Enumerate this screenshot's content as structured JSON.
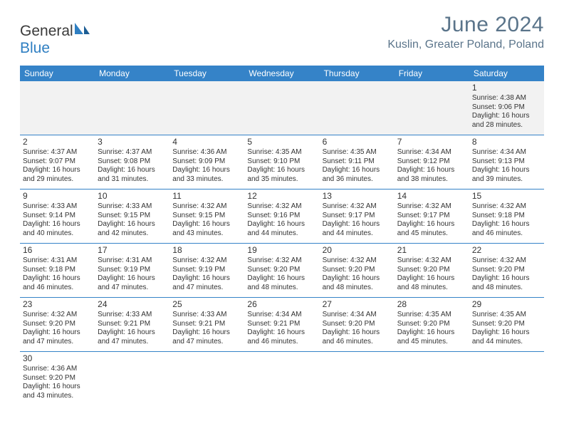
{
  "brand": {
    "part1": "General",
    "part2": "Blue"
  },
  "title": "June 2024",
  "location": "Kuslin, Greater Poland, Poland",
  "colors": {
    "header_bar": "#3583c8",
    "logo_blue": "#2f7fc2",
    "title_gray": "#5a748a",
    "text": "#333333",
    "leading_bg": "#f2f2f2"
  },
  "weekdays": [
    "Sunday",
    "Monday",
    "Tuesday",
    "Wednesday",
    "Thursday",
    "Friday",
    "Saturday"
  ],
  "leading_blanks": 6,
  "days": [
    {
      "n": "1",
      "sunrise": "4:38 AM",
      "sunset": "9:06 PM",
      "day_h": "16",
      "day_m": "28"
    },
    {
      "n": "2",
      "sunrise": "4:37 AM",
      "sunset": "9:07 PM",
      "day_h": "16",
      "day_m": "29"
    },
    {
      "n": "3",
      "sunrise": "4:37 AM",
      "sunset": "9:08 PM",
      "day_h": "16",
      "day_m": "31"
    },
    {
      "n": "4",
      "sunrise": "4:36 AM",
      "sunset": "9:09 PM",
      "day_h": "16",
      "day_m": "33"
    },
    {
      "n": "5",
      "sunrise": "4:35 AM",
      "sunset": "9:10 PM",
      "day_h": "16",
      "day_m": "35"
    },
    {
      "n": "6",
      "sunrise": "4:35 AM",
      "sunset": "9:11 PM",
      "day_h": "16",
      "day_m": "36"
    },
    {
      "n": "7",
      "sunrise": "4:34 AM",
      "sunset": "9:12 PM",
      "day_h": "16",
      "day_m": "38"
    },
    {
      "n": "8",
      "sunrise": "4:34 AM",
      "sunset": "9:13 PM",
      "day_h": "16",
      "day_m": "39"
    },
    {
      "n": "9",
      "sunrise": "4:33 AM",
      "sunset": "9:14 PM",
      "day_h": "16",
      "day_m": "40"
    },
    {
      "n": "10",
      "sunrise": "4:33 AM",
      "sunset": "9:15 PM",
      "day_h": "16",
      "day_m": "42"
    },
    {
      "n": "11",
      "sunrise": "4:32 AM",
      "sunset": "9:15 PM",
      "day_h": "16",
      "day_m": "43"
    },
    {
      "n": "12",
      "sunrise": "4:32 AM",
      "sunset": "9:16 PM",
      "day_h": "16",
      "day_m": "44"
    },
    {
      "n": "13",
      "sunrise": "4:32 AM",
      "sunset": "9:17 PM",
      "day_h": "16",
      "day_m": "44"
    },
    {
      "n": "14",
      "sunrise": "4:32 AM",
      "sunset": "9:17 PM",
      "day_h": "16",
      "day_m": "45"
    },
    {
      "n": "15",
      "sunrise": "4:32 AM",
      "sunset": "9:18 PM",
      "day_h": "16",
      "day_m": "46"
    },
    {
      "n": "16",
      "sunrise": "4:31 AM",
      "sunset": "9:18 PM",
      "day_h": "16",
      "day_m": "46"
    },
    {
      "n": "17",
      "sunrise": "4:31 AM",
      "sunset": "9:19 PM",
      "day_h": "16",
      "day_m": "47"
    },
    {
      "n": "18",
      "sunrise": "4:32 AM",
      "sunset": "9:19 PM",
      "day_h": "16",
      "day_m": "47"
    },
    {
      "n": "19",
      "sunrise": "4:32 AM",
      "sunset": "9:20 PM",
      "day_h": "16",
      "day_m": "48"
    },
    {
      "n": "20",
      "sunrise": "4:32 AM",
      "sunset": "9:20 PM",
      "day_h": "16",
      "day_m": "48"
    },
    {
      "n": "21",
      "sunrise": "4:32 AM",
      "sunset": "9:20 PM",
      "day_h": "16",
      "day_m": "48"
    },
    {
      "n": "22",
      "sunrise": "4:32 AM",
      "sunset": "9:20 PM",
      "day_h": "16",
      "day_m": "48"
    },
    {
      "n": "23",
      "sunrise": "4:32 AM",
      "sunset": "9:20 PM",
      "day_h": "16",
      "day_m": "47"
    },
    {
      "n": "24",
      "sunrise": "4:33 AM",
      "sunset": "9:21 PM",
      "day_h": "16",
      "day_m": "47"
    },
    {
      "n": "25",
      "sunrise": "4:33 AM",
      "sunset": "9:21 PM",
      "day_h": "16",
      "day_m": "47"
    },
    {
      "n": "26",
      "sunrise": "4:34 AM",
      "sunset": "9:21 PM",
      "day_h": "16",
      "day_m": "46"
    },
    {
      "n": "27",
      "sunrise": "4:34 AM",
      "sunset": "9:20 PM",
      "day_h": "16",
      "day_m": "46"
    },
    {
      "n": "28",
      "sunrise": "4:35 AM",
      "sunset": "9:20 PM",
      "day_h": "16",
      "day_m": "45"
    },
    {
      "n": "29",
      "sunrise": "4:35 AM",
      "sunset": "9:20 PM",
      "day_h": "16",
      "day_m": "44"
    },
    {
      "n": "30",
      "sunrise": "4:36 AM",
      "sunset": "9:20 PM",
      "day_h": "16",
      "day_m": "43"
    }
  ],
  "labels": {
    "sunrise": "Sunrise:",
    "sunset": "Sunset:",
    "daylight_prefix": "Daylight:",
    "hours_word": "hours",
    "and_word": "and",
    "minutes_word": "minutes."
  }
}
